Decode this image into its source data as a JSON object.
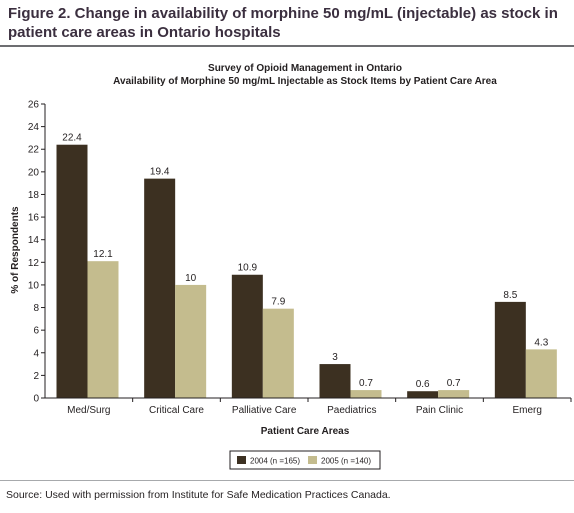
{
  "figure": {
    "title": "Figure 2. Change in availability of morphine 50 mg/mL (injectable) as stock in patient care areas in Ontario hospitals",
    "source": "Source: Used with permission from Institute for Safe Medication Practices Canada."
  },
  "chart_data": {
    "type": "bar",
    "title": "Survey of Opioid Management in Ontario",
    "subtitle": "Availability of Morphine 50 mg/mL Injectable as Stock Items by Patient Care Area",
    "xlabel": "Patient Care Areas",
    "ylabel": "% of Respondents",
    "ylim": [
      0,
      26
    ],
    "yticks": [
      0,
      2,
      4,
      6,
      8,
      10,
      12,
      14,
      16,
      18,
      20,
      22,
      24,
      26
    ],
    "categories": [
      "Med/Surg",
      "Critical Care",
      "Palliative Care",
      "Paediatrics",
      "Pain Clinic",
      "Emerg"
    ],
    "series": [
      {
        "name": "2004 (n =165)",
        "color": "#3c3021",
        "values": [
          22.4,
          19.4,
          10.9,
          3,
          0.6,
          8.5
        ]
      },
      {
        "name": "2005 (n =140)",
        "color": "#c4bc8e",
        "values": [
          12.1,
          10,
          7.9,
          0.7,
          0.7,
          4.3
        ]
      }
    ],
    "legend_position": "bottom-center",
    "grid": false
  }
}
